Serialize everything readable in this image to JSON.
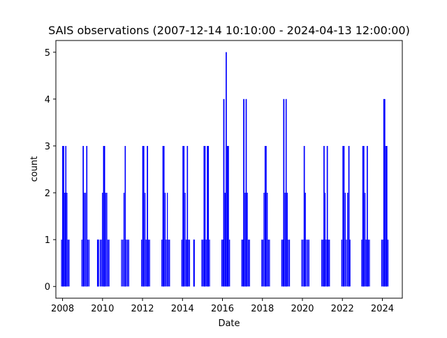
{
  "chart_data": {
    "type": "line",
    "title": "SAIS observations (2007-12-14 10:10:00 - 2024-04-13 12:00:00)",
    "xlabel": "Date",
    "ylabel": "count",
    "xlim": [
      "2007-09-01",
      "2024-12-31"
    ],
    "ylim": [
      -0.25,
      5.25
    ],
    "x_ticks": [
      "2008",
      "2010",
      "2012",
      "2014",
      "2016",
      "2018",
      "2020",
      "2022",
      "2024"
    ],
    "y_ticks": [
      "0",
      "1",
      "2",
      "3",
      "4",
      "5"
    ],
    "grid": false,
    "legend": "none",
    "series": [
      {
        "color": "#0000ff",
        "note_style": "step",
        "bursts": [
          {
            "start": "2007-12-14",
            "end": "2008-04-30",
            "peaks": [
              {
                "date": "2008-01-10",
                "value": 3
              },
              {
                "date": "2008-03-01",
                "value": 3
              }
            ],
            "level": 2
          },
          {
            "start": "2008-12-20",
            "end": "2009-04-30",
            "peaks": [
              {
                "date": "2009-01-15",
                "value": 3
              },
              {
                "date": "2009-03-20",
                "value": 3
              }
            ],
            "level": 2
          },
          {
            "start": "2009-10-01",
            "end": "2009-10-20",
            "peaks": [],
            "level": 1
          },
          {
            "start": "2009-11-20",
            "end": "2010-04-30",
            "peaks": [
              {
                "date": "2010-02-01",
                "value": 3
              }
            ],
            "level": 2
          },
          {
            "start": "2010-12-15",
            "end": "2011-04-25",
            "peaks": [
              {
                "date": "2011-02-20",
                "value": 3
              }
            ],
            "level": 2
          },
          {
            "start": "2011-12-15",
            "end": "2012-05-10",
            "peaks": [
              {
                "date": "2012-01-20",
                "value": 3
              },
              {
                "date": "2012-04-01",
                "value": 3
              }
            ],
            "level": 2
          },
          {
            "start": "2012-12-20",
            "end": "2013-05-10",
            "peaks": [
              {
                "date": "2013-01-20",
                "value": 3
              }
            ],
            "level": 2
          },
          {
            "start": "2013-12-20",
            "end": "2014-05-10",
            "peaks": [
              {
                "date": "2014-01-15",
                "value": 3
              },
              {
                "date": "2014-04-01",
                "value": 3
              }
            ],
            "level": 2
          },
          {
            "start": "2014-07-25",
            "end": "2014-08-05",
            "peaks": [],
            "level": 1
          },
          {
            "start": "2014-12-20",
            "end": "2015-05-10",
            "peaks": [
              {
                "date": "2015-02-10",
                "value": 3
              },
              {
                "date": "2015-04-10",
                "value": 3
              }
            ],
            "level": 2
          },
          {
            "start": "2015-12-20",
            "end": "2016-05-10",
            "peaks": [
              {
                "date": "2016-01-25",
                "value": 4
              },
              {
                "date": "2016-03-10",
                "value": 5
              },
              {
                "date": "2016-04-10",
                "value": 3
              }
            ],
            "level": 3
          },
          {
            "start": "2016-12-20",
            "end": "2017-05-10",
            "peaks": [
              {
                "date": "2017-01-25",
                "value": 4
              },
              {
                "date": "2017-03-10",
                "value": 4
              }
            ],
            "level": 3
          },
          {
            "start": "2017-12-20",
            "end": "2018-05-10",
            "peaks": [
              {
                "date": "2018-03-01",
                "value": 3
              }
            ],
            "level": 2
          },
          {
            "start": "2018-12-20",
            "end": "2019-05-10",
            "peaks": [
              {
                "date": "2019-01-25",
                "value": 4
              },
              {
                "date": "2019-03-10",
                "value": 4
              }
            ],
            "level": 3
          },
          {
            "start": "2019-12-20",
            "end": "2020-04-30",
            "peaks": [
              {
                "date": "2020-02-05",
                "value": 3
              }
            ],
            "level": 2
          },
          {
            "start": "2020-12-20",
            "end": "2021-05-10",
            "peaks": [
              {
                "date": "2021-02-01",
                "value": 3
              },
              {
                "date": "2021-04-01",
                "value": 3
              }
            ],
            "level": 2
          },
          {
            "start": "2021-12-20",
            "end": "2022-05-20",
            "peaks": [
              {
                "date": "2022-01-20",
                "value": 3
              },
              {
                "date": "2022-05-01",
                "value": 3
              }
            ],
            "level": 3
          },
          {
            "start": "2022-12-20",
            "end": "2023-05-10",
            "peaks": [
              {
                "date": "2023-01-20",
                "value": 3
              },
              {
                "date": "2023-04-01",
                "value": 3
              }
            ],
            "level": 2
          },
          {
            "start": "2023-12-20",
            "end": "2024-04-13",
            "peaks": [
              {
                "date": "2024-02-01",
                "value": 4
              },
              {
                "date": "2024-03-15",
                "value": 3
              }
            ],
            "level": 3
          }
        ]
      }
    ]
  }
}
